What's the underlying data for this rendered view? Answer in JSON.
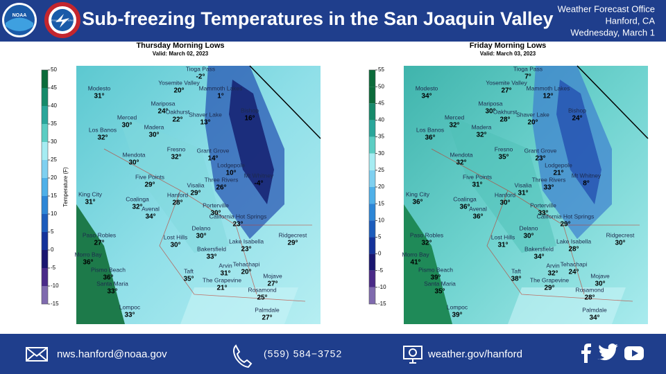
{
  "header": {
    "title": "Sub-freezing Temperatures in the San Joaquin Valley",
    "logos": [
      "NOAA",
      "NATIONAL WEATHER SERVICE"
    ],
    "office": [
      "Weather Forecast Office",
      "Hanford, CA",
      "Wednesday, March 1"
    ]
  },
  "cities": [
    "Tioga Pass",
    "Yosemite Valley",
    "Mammoth Lakes",
    "Modesto",
    "Mariposa",
    "Bishop",
    "Oakhurst",
    "Shaver Lake",
    "Merced",
    "Madera",
    "Los Banos",
    "Fresno",
    "Grant Grove",
    "Mendota",
    "Lodgepole",
    "Mt Whitney",
    "Five Points",
    "Three Rivers",
    "Visalia",
    "King City",
    "Hanford",
    "Coalinga",
    "Porterville",
    "Avenal",
    "California Hot Springs",
    "Delano",
    "Paso Robles",
    "Lost Hills",
    "Ridgecrest",
    "Lake Isabella",
    "Bakersfield",
    "Morro Bay",
    "Arvin",
    "Tehachapi",
    "Pismo Beach",
    "Taft",
    "Mojave",
    "Santa Maria",
    "The Grapevine",
    "Rosamond",
    "Lompoc",
    "Palmdale"
  ],
  "panels": [
    {
      "title": "Thursday Morning Lows",
      "valid": "Valid: March 02, 2023",
      "colorbar": {
        "label": "Temperature (F)",
        "ticks": [
          50,
          45,
          40,
          35,
          30,
          25,
          20,
          15,
          10,
          5,
          0,
          -5,
          -10,
          -15
        ]
      },
      "temps": [
        "-2°",
        "20°",
        "1°",
        "31°",
        "24°",
        "16°",
        "22°",
        "13°",
        "30°",
        "30°",
        "32°",
        "32°",
        "14°",
        "30°",
        "10°",
        "-4°",
        "29°",
        "26°",
        "29°",
        "31°",
        "28°",
        "32°",
        "30°",
        "34°",
        "23°",
        "30°",
        "27°",
        "30°",
        "29°",
        "23°",
        "33°",
        "36°",
        "31°",
        "20°",
        "36°",
        "35°",
        "27°",
        "33°",
        "21°",
        "25°",
        "33°",
        "27°"
      ]
    },
    {
      "title": "Friday Morning Lows",
      "valid": "Valid: March 03, 2023",
      "colorbar": {
        "label": "Temperature (F)",
        "ticks": [
          55,
          50,
          45,
          40,
          35,
          30,
          25,
          20,
          15,
          10,
          5,
          0,
          -5,
          -10,
          -15
        ]
      },
      "temps": [
        "7°",
        "27°",
        "12°",
        "34°",
        "30°",
        "24°",
        "28°",
        "20°",
        "32°",
        "32°",
        "36°",
        "35°",
        "23°",
        "32°",
        "21°",
        "8°",
        "31°",
        "33°",
        "31°",
        "36°",
        "30°",
        "36°",
        "33°",
        "36°",
        "29°",
        "30°",
        "32°",
        "31°",
        "30°",
        "28°",
        "34°",
        "41°",
        "32°",
        "24°",
        "39°",
        "38°",
        "30°",
        "35°",
        "29°",
        "28°",
        "39°",
        "34°"
      ]
    }
  ],
  "footer": {
    "email": "nws.hanford@noaa.gov",
    "phone": "(559)  584−3752",
    "website": "weather.gov/hanford"
  }
}
